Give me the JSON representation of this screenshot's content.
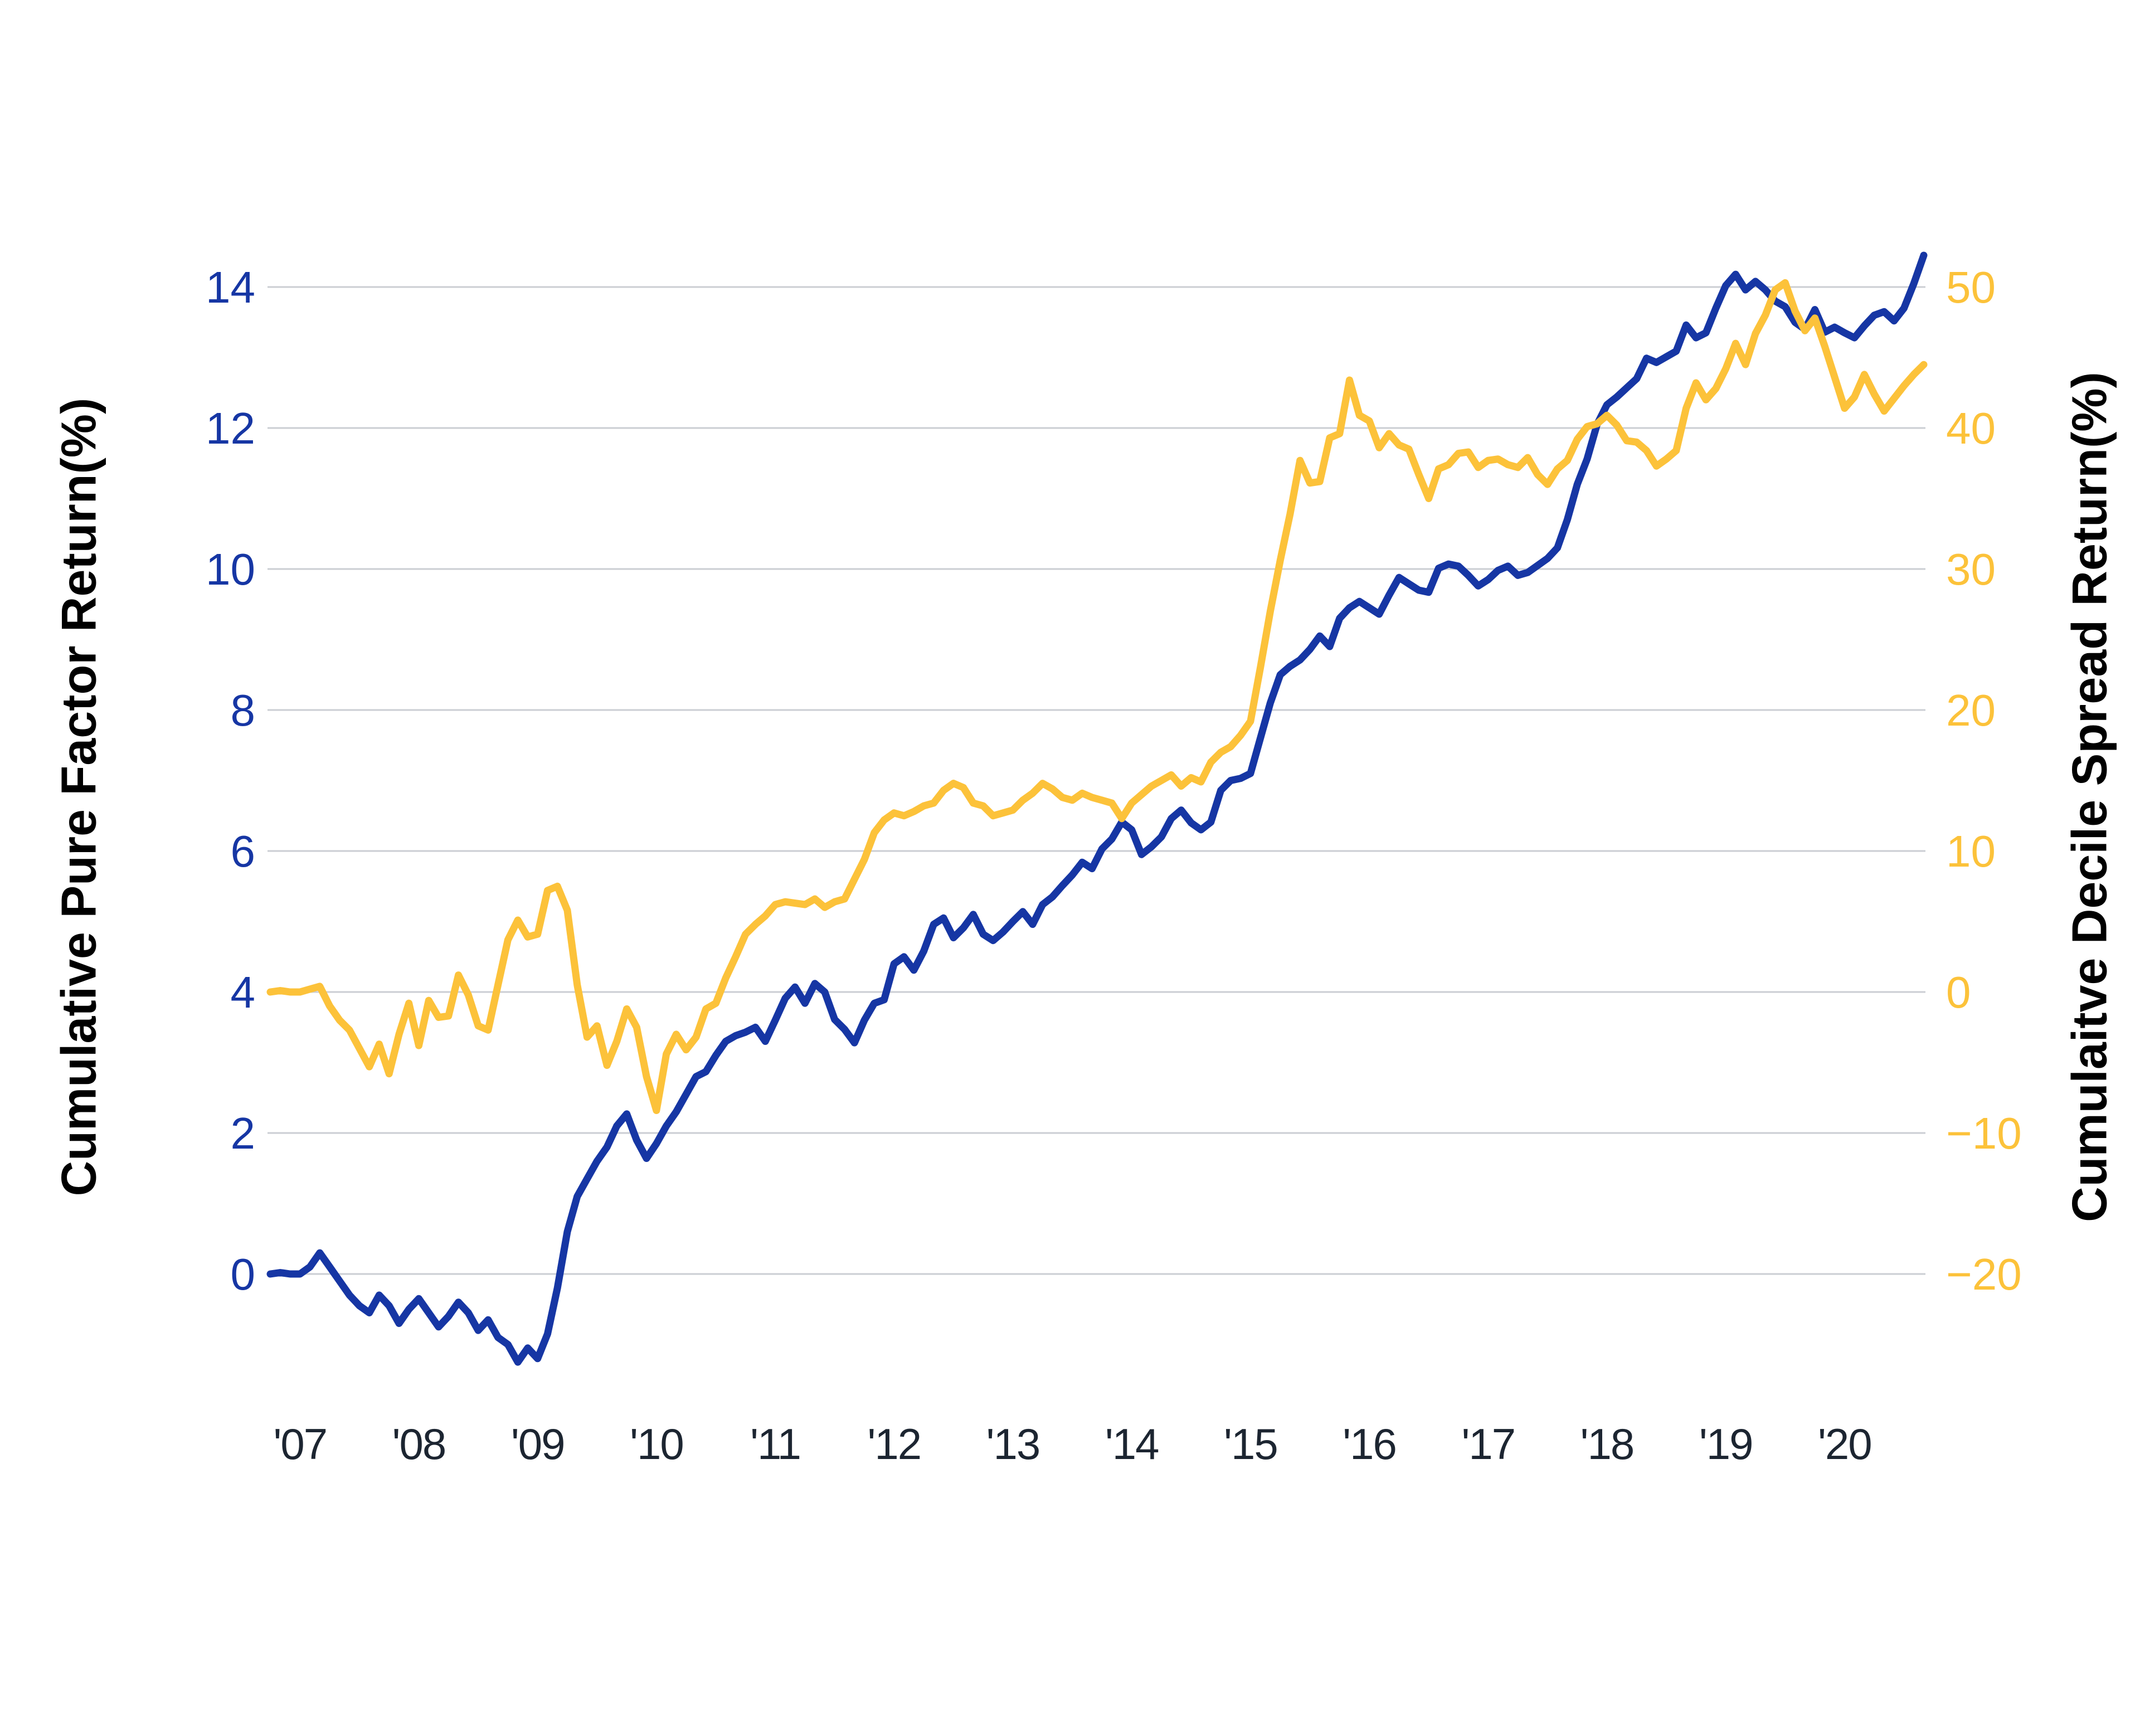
{
  "chart_data": {
    "type": "line",
    "title": "",
    "background": "#FFFFFF",
    "grid": {
      "on": true,
      "color": "#CBCED3"
    },
    "legend": "none",
    "x_axis": {
      "tick_labels": [
        "'07",
        "'08",
        "'09",
        "'10",
        "'11",
        "'12",
        "'13",
        "'14",
        "'15",
        "'16",
        "'17",
        "'18",
        "'19",
        "'20"
      ],
      "color": "#1C2531",
      "months_total": 168,
      "first_label_index": 3,
      "label_interval": 12
    },
    "left_axis": {
      "label": "Cumulative Pure Factor Return(%)",
      "color": "#1636A4",
      "range": [
        0,
        14
      ],
      "tick_values": [
        14,
        12,
        10,
        8,
        6,
        4,
        2,
        0
      ],
      "tick_labels": [
        "14",
        "12",
        "10",
        "8",
        "6",
        "4",
        "2",
        "0"
      ]
    },
    "right_axis": {
      "label": "Cumulaitve Decile Spread Return(%)",
      "color": "#FCC23A",
      "range": [
        -20,
        50
      ],
      "tick_values": [
        50,
        40,
        30,
        20,
        10,
        0,
        -10,
        -20
      ],
      "tick_labels": [
        "50",
        "40",
        "30",
        "20",
        "10",
        "0",
        "−10",
        "−20"
      ]
    },
    "series": [
      {
        "name": "Cumulative Pure Factor Return(%)",
        "axis": "left",
        "color": "#1636A4",
        "values": [
          0.0,
          0.02,
          0.0,
          0.0,
          0.1,
          0.3,
          0.1,
          -0.1,
          -0.3,
          -0.45,
          -0.55,
          -0.3,
          -0.45,
          -0.7,
          -0.5,
          -0.35,
          -0.55,
          -0.75,
          -0.6,
          -0.4,
          -0.55,
          -0.8,
          -0.65,
          -0.9,
          -1.0,
          -1.25,
          -1.05,
          -1.2,
          -0.85,
          -0.2,
          0.6,
          1.1,
          1.35,
          1.6,
          1.8,
          2.1,
          2.27,
          1.9,
          1.64,
          1.85,
          2.1,
          2.3,
          2.55,
          2.8,
          2.87,
          3.1,
          3.3,
          3.38,
          3.43,
          3.5,
          3.3,
          3.6,
          3.91,
          4.07,
          3.84,
          4.12,
          4.0,
          3.61,
          3.47,
          3.28,
          3.6,
          3.84,
          3.89,
          4.4,
          4.5,
          4.31,
          4.58,
          4.96,
          5.05,
          4.77,
          4.91,
          5.1,
          4.82,
          4.73,
          4.85,
          5.0,
          5.14,
          4.96,
          5.24,
          5.35,
          5.51,
          5.66,
          5.84,
          5.75,
          6.03,
          6.17,
          6.41,
          6.3,
          5.95,
          6.06,
          6.2,
          6.46,
          6.58,
          6.4,
          6.3,
          6.41,
          6.86,
          7.0,
          7.03,
          7.1,
          7.6,
          8.1,
          8.5,
          8.62,
          8.71,
          8.86,
          9.05,
          8.9,
          9.3,
          9.45,
          9.54,
          9.45,
          9.36,
          9.63,
          9.88,
          9.79,
          9.7,
          9.67,
          10.01,
          10.07,
          10.04,
          9.91,
          9.76,
          9.85,
          9.98,
          10.04,
          9.91,
          9.95,
          10.05,
          10.15,
          10.3,
          10.7,
          11.2,
          11.56,
          12.05,
          12.33,
          12.44,
          12.57,
          12.7,
          12.99,
          12.93,
          13.01,
          13.09,
          13.46,
          13.28,
          13.35,
          13.7,
          14.02,
          14.18,
          13.96,
          14.08,
          13.96,
          13.8,
          13.72,
          13.5,
          13.4,
          13.68,
          13.36,
          13.43,
          13.35,
          13.28,
          13.45,
          13.6,
          13.65,
          13.52,
          13.7,
          14.05,
          14.45
        ]
      },
      {
        "name": "Cumulaitve Decile Spread Return(%)",
        "axis": "right",
        "color": "#FCC23A",
        "values": [
          0.0,
          0.1,
          0.0,
          0.0,
          0.2,
          0.4,
          -1.0,
          -2.0,
          -2.7,
          -4.0,
          -5.3,
          -3.7,
          -5.8,
          -3.0,
          -0.8,
          -3.8,
          -0.6,
          -1.8,
          -1.7,
          1.2,
          -0.2,
          -2.4,
          -2.7,
          0.5,
          3.7,
          5.1,
          3.9,
          4.1,
          7.2,
          7.5,
          5.8,
          0.5,
          -3.2,
          -2.4,
          -5.2,
          -3.5,
          -1.2,
          -2.5,
          -6.0,
          -8.4,
          -4.4,
          -3.0,
          -4.1,
          -3.2,
          -1.2,
          -0.8,
          1.0,
          2.5,
          4.1,
          4.8,
          5.4,
          6.2,
          6.4,
          6.3,
          6.2,
          6.6,
          6.0,
          6.4,
          6.6,
          8.0,
          9.4,
          11.3,
          12.2,
          12.7,
          12.5,
          12.8,
          13.2,
          13.4,
          14.3,
          14.8,
          14.5,
          13.4,
          13.2,
          12.5,
          12.7,
          12.9,
          13.6,
          14.1,
          14.8,
          14.4,
          13.8,
          13.6,
          14.1,
          13.8,
          13.6,
          13.4,
          12.3,
          13.4,
          14.0,
          14.6,
          15.0,
          15.4,
          14.6,
          15.2,
          14.9,
          16.3,
          17.0,
          17.4,
          18.2,
          19.2,
          23.0,
          27.0,
          30.6,
          33.9,
          37.7,
          36.1,
          36.2,
          39.3,
          39.6,
          43.4,
          40.9,
          40.5,
          38.6,
          39.6,
          38.8,
          38.5,
          36.7,
          35.0,
          37.1,
          37.4,
          38.2,
          38.3,
          37.2,
          37.7,
          37.8,
          37.4,
          37.2,
          37.9,
          36.7,
          36.0,
          37.1,
          37.7,
          39.2,
          40.1,
          40.3,
          40.9,
          40.2,
          39.1,
          39.0,
          38.4,
          37.3,
          37.8,
          38.4,
          41.4,
          43.2,
          42.0,
          42.8,
          44.2,
          46.0,
          44.5,
          46.7,
          48.0,
          49.8,
          50.3,
          48.3,
          46.9,
          47.8,
          45.8,
          43.6,
          41.4,
          42.2,
          43.8,
          42.4,
          41.2,
          42.1,
          43.0,
          43.8,
          44.5
        ]
      }
    ]
  }
}
